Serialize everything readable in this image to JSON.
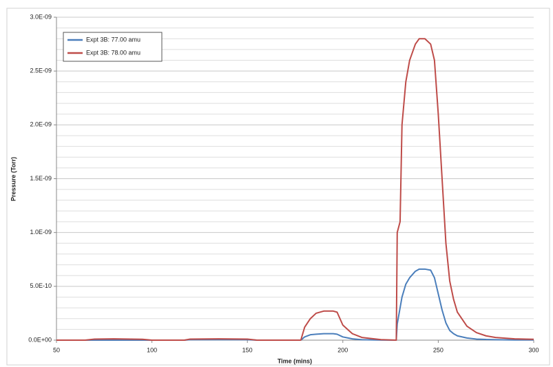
{
  "chart_data": {
    "type": "line",
    "x_label": "Time (mins)",
    "y_label": "Pressure (Torr)",
    "x": [
      50,
      65,
      70,
      80,
      95,
      100,
      117,
      120,
      135,
      150,
      155,
      170,
      178,
      180,
      183,
      186,
      190,
      195,
      197,
      200,
      205,
      210,
      220,
      228,
      228.5,
      230,
      231,
      233,
      235,
      238,
      240,
      243,
      246,
      248,
      250,
      252,
      254,
      256,
      258,
      260,
      265,
      270,
      275,
      280,
      290,
      300
    ],
    "series": [
      {
        "name": "Expt 3B: 77.00  amu",
        "color": "#4a7ebb",
        "values": [
          0,
          0,
          0,
          0,
          0,
          0,
          0,
          4e-12,
          5e-12,
          4e-12,
          0,
          0,
          0,
          3e-11,
          5e-11,
          5.5e-11,
          6e-11,
          6e-11,
          5.5e-11,
          3e-11,
          1.2e-11,
          4e-12,
          1e-12,
          0,
          1.5e-10,
          3e-10,
          4e-10,
          5.2e-10,
          5.8e-10,
          6.4e-10,
          6.6e-10,
          6.6e-10,
          6.5e-10,
          5.8e-10,
          4.3e-10,
          2.8e-10,
          1.6e-10,
          9e-11,
          6e-11,
          4e-11,
          2e-11,
          1e-11,
          6e-12,
          4e-12,
          2e-12,
          2e-12
        ]
      },
      {
        "name": "Expt 3B: 78.00  amu",
        "color": "#be4b48",
        "values": [
          0,
          0,
          1e-11,
          1.2e-11,
          8e-12,
          0,
          0,
          1e-11,
          1.2e-11,
          1e-11,
          0,
          0,
          0,
          1.2e-10,
          2e-10,
          2.5e-10,
          2.7e-10,
          2.7e-10,
          2.6e-10,
          1.4e-10,
          6e-11,
          2.5e-11,
          5e-12,
          0,
          1e-09,
          1.1e-09,
          2e-09,
          2.4e-09,
          2.6e-09,
          2.75e-09,
          2.8e-09,
          2.8e-09,
          2.75e-09,
          2.6e-09,
          2.1e-09,
          1.5e-09,
          9e-10,
          5.5e-10,
          3.8e-10,
          2.6e-10,
          1.3e-10,
          7e-11,
          4e-11,
          2.5e-11,
          1.2e-11,
          8e-12
        ]
      }
    ],
    "xlim": [
      50,
      300
    ],
    "xticks": [
      50,
      100,
      150,
      200,
      250,
      300
    ],
    "ylim": [
      0,
      3e-09
    ],
    "yticks": [
      {
        "value": 0,
        "label": "0.0E+00"
      },
      {
        "value": 5e-10,
        "label": "5.0E-10"
      },
      {
        "value": 1e-09,
        "label": "1.0E-09"
      },
      {
        "value": 1.5e-09,
        "label": "1.5E-09"
      },
      {
        "value": 2e-09,
        "label": "2.0E-09"
      },
      {
        "value": 2.5e-09,
        "label": "2.5E-09"
      },
      {
        "value": 3e-09,
        "label": "3.0E-09"
      }
    ],
    "grid": true,
    "legend": "upper left"
  }
}
